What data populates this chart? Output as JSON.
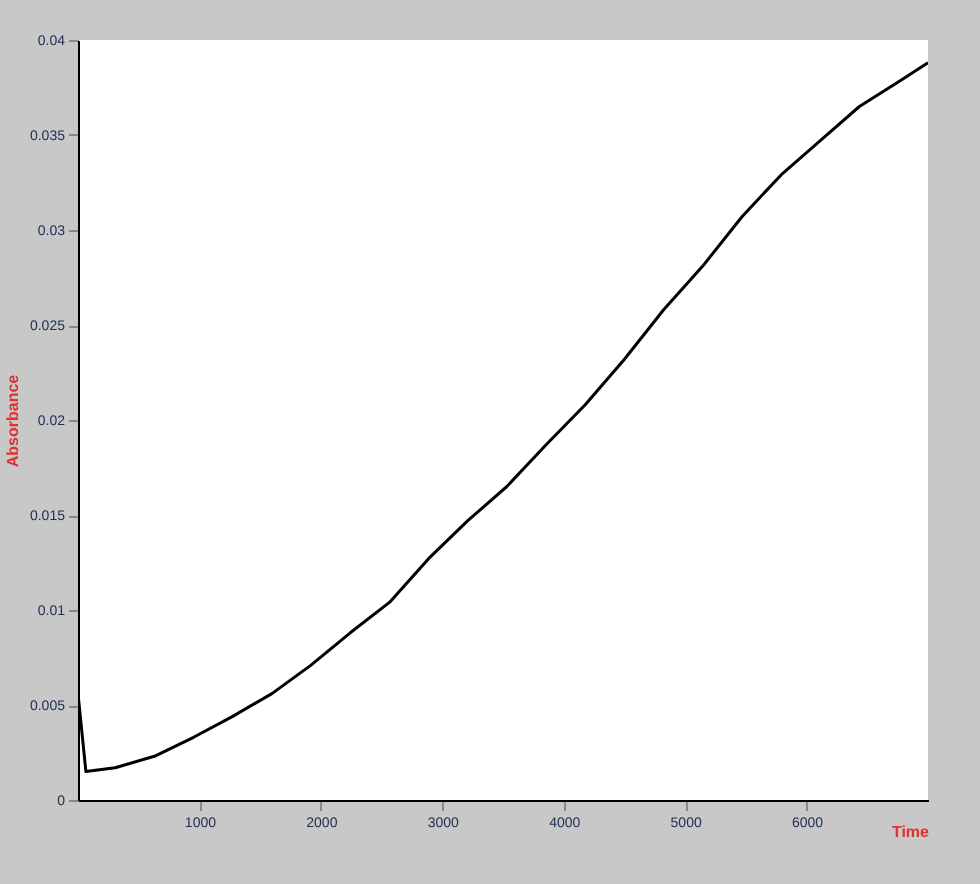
{
  "chart_data": {
    "type": "line",
    "xlabel": "Time",
    "ylabel": "Absorbance",
    "x": [
      0,
      65,
      306,
      629,
      952,
      1274,
      1597,
      1919,
      2242,
      2565,
      2887,
      3210,
      3532,
      3855,
      4177,
      4500,
      4823,
      5145,
      5468,
      5790,
      6113,
      6435,
      6758,
      7000
    ],
    "series": [
      {
        "color": "#000000",
        "values": [
          0.0056,
          0.0015,
          0.0017,
          0.0023,
          0.0033,
          0.0044,
          0.0056,
          0.0071,
          0.0088,
          0.0104,
          0.0127,
          0.0147,
          0.0165,
          0.0187,
          0.0208,
          0.0232,
          0.0258,
          0.0281,
          0.0307,
          0.0329,
          0.0347,
          0.0365,
          0.0378,
          0.0388
        ]
      }
    ],
    "xlim": [
      0,
      7000
    ],
    "xticks": [
      1000,
      2000,
      3000,
      4000,
      5000,
      6000
    ],
    "ylim": [
      0,
      0.04
    ],
    "yticks": [
      0,
      0.005,
      0.01,
      0.015,
      0.02,
      0.025,
      0.03,
      0.035,
      0.04
    ],
    "grid": false,
    "legend": false,
    "marker": "none",
    "line_style": "solid"
  }
}
